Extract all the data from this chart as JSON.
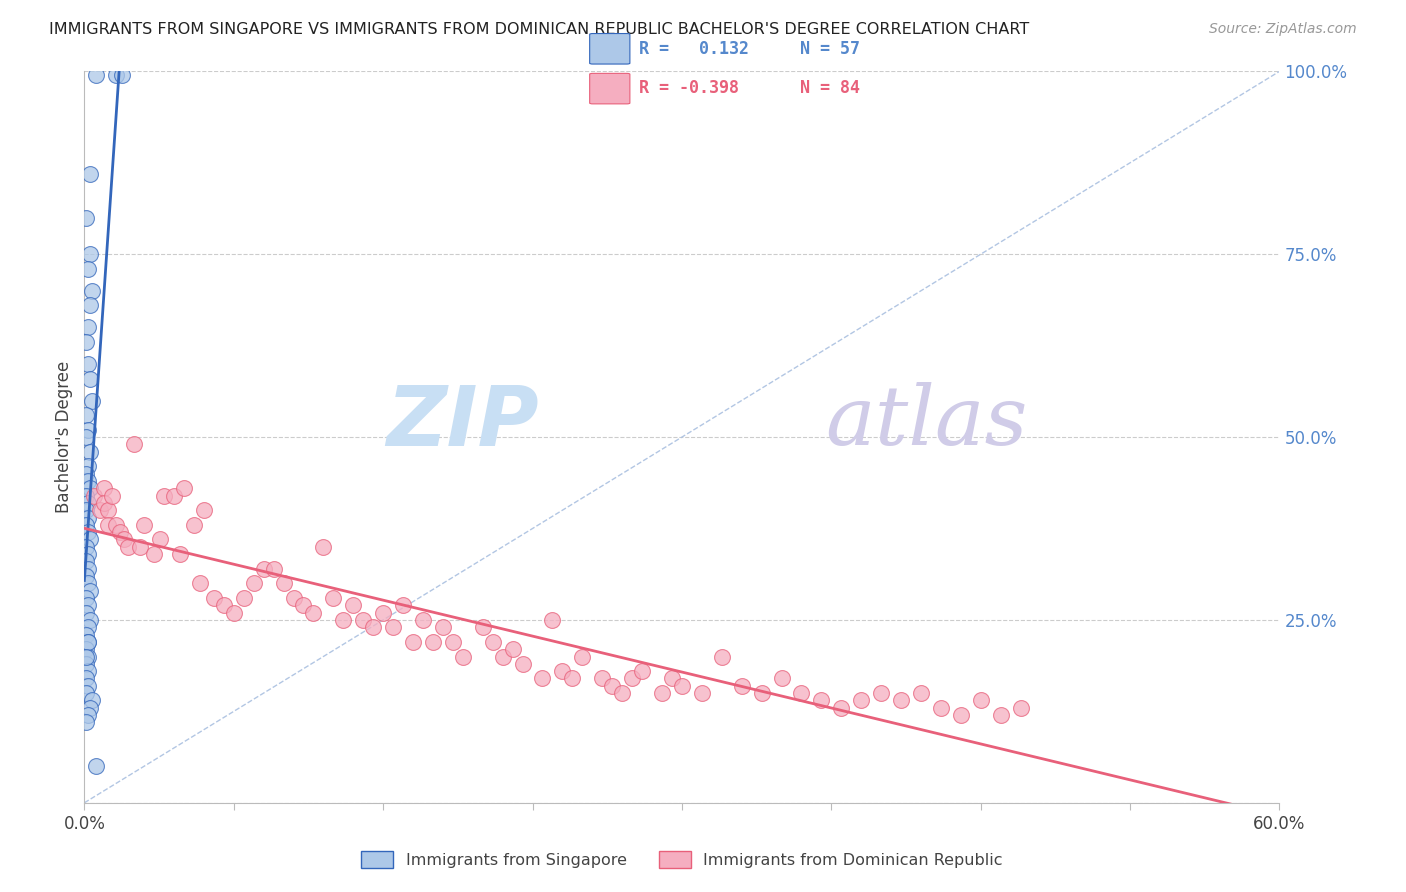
{
  "title": "IMMIGRANTS FROM SINGAPORE VS IMMIGRANTS FROM DOMINICAN REPUBLIC BACHELOR'S DEGREE CORRELATION CHART",
  "source": "Source: ZipAtlas.com",
  "ylabel_left": "Bachelor's Degree",
  "ylabel_right_ticks": [
    0.0,
    0.25,
    0.5,
    0.75,
    1.0
  ],
  "ylabel_right_labels": [
    "",
    "25.0%",
    "50.0%",
    "75.0%",
    "100.0%"
  ],
  "xlim": [
    0.0,
    0.6
  ],
  "ylim": [
    0.0,
    1.0
  ],
  "xticks": [
    0.0,
    0.075,
    0.15,
    0.225,
    0.3,
    0.375,
    0.45,
    0.525,
    0.6
  ],
  "xtick_labels": [
    "0.0%",
    "",
    "",
    "",
    "",
    "",
    "",
    "",
    "60.0%"
  ],
  "legend_r1": "R =   0.132",
  "legend_n1": "N = 57",
  "legend_r2": "R = -0.398",
  "legend_n2": "N = 84",
  "color_singapore": "#adc8e8",
  "color_dominican": "#f5aec0",
  "color_singapore_line": "#3366bb",
  "color_dominican_line": "#e8607a",
  "color_diagonal": "#aac0e0",
  "color_axis_right": "#5588cc",
  "color_grid": "#cccccc",
  "watermark_zip": "ZIP",
  "watermark_atlas": "atlas",
  "watermark_color_zip": "#c8dff4",
  "watermark_color_atlas": "#d0cce8",
  "legend_label_singapore": "Immigrants from Singapore",
  "legend_label_dominican": "Immigrants from Dominican Republic",
  "singapore_x": [
    0.006,
    0.016,
    0.019,
    0.003,
    0.001,
    0.003,
    0.002,
    0.004,
    0.003,
    0.002,
    0.001,
    0.002,
    0.003,
    0.004,
    0.001,
    0.002,
    0.001,
    0.003,
    0.002,
    0.001,
    0.002,
    0.003,
    0.001,
    0.002,
    0.001,
    0.002,
    0.001,
    0.002,
    0.003,
    0.001,
    0.002,
    0.001,
    0.002,
    0.001,
    0.002,
    0.003,
    0.001,
    0.002,
    0.001,
    0.003,
    0.002,
    0.001,
    0.002,
    0.001,
    0.002,
    0.001,
    0.002,
    0.001,
    0.002,
    0.001,
    0.004,
    0.003,
    0.002,
    0.001,
    0.002,
    0.001,
    0.006
  ],
  "singapore_y": [
    0.995,
    0.995,
    0.995,
    0.86,
    0.8,
    0.75,
    0.73,
    0.7,
    0.68,
    0.65,
    0.63,
    0.6,
    0.58,
    0.55,
    0.53,
    0.51,
    0.5,
    0.48,
    0.46,
    0.45,
    0.44,
    0.43,
    0.42,
    0.41,
    0.4,
    0.39,
    0.38,
    0.37,
    0.36,
    0.35,
    0.34,
    0.33,
    0.32,
    0.31,
    0.3,
    0.29,
    0.28,
    0.27,
    0.26,
    0.25,
    0.24,
    0.23,
    0.22,
    0.21,
    0.2,
    0.19,
    0.18,
    0.17,
    0.16,
    0.15,
    0.14,
    0.13,
    0.12,
    0.11,
    0.22,
    0.2,
    0.05
  ],
  "dominican_x": [
    0.005,
    0.008,
    0.01,
    0.01,
    0.012,
    0.012,
    0.014,
    0.016,
    0.018,
    0.02,
    0.022,
    0.025,
    0.028,
    0.03,
    0.035,
    0.038,
    0.04,
    0.045,
    0.048,
    0.05,
    0.055,
    0.058,
    0.06,
    0.065,
    0.07,
    0.075,
    0.08,
    0.085,
    0.09,
    0.095,
    0.1,
    0.105,
    0.11,
    0.115,
    0.12,
    0.125,
    0.13,
    0.135,
    0.14,
    0.145,
    0.15,
    0.155,
    0.16,
    0.165,
    0.17,
    0.175,
    0.18,
    0.185,
    0.19,
    0.2,
    0.205,
    0.21,
    0.215,
    0.22,
    0.23,
    0.235,
    0.24,
    0.245,
    0.25,
    0.26,
    0.265,
    0.27,
    0.275,
    0.28,
    0.29,
    0.295,
    0.3,
    0.31,
    0.32,
    0.33,
    0.34,
    0.35,
    0.36,
    0.37,
    0.38,
    0.39,
    0.4,
    0.41,
    0.42,
    0.43,
    0.44,
    0.45,
    0.46,
    0.47
  ],
  "dominican_y": [
    0.42,
    0.4,
    0.43,
    0.41,
    0.4,
    0.38,
    0.42,
    0.38,
    0.37,
    0.36,
    0.35,
    0.49,
    0.35,
    0.38,
    0.34,
    0.36,
    0.42,
    0.42,
    0.34,
    0.43,
    0.38,
    0.3,
    0.4,
    0.28,
    0.27,
    0.26,
    0.28,
    0.3,
    0.32,
    0.32,
    0.3,
    0.28,
    0.27,
    0.26,
    0.35,
    0.28,
    0.25,
    0.27,
    0.25,
    0.24,
    0.26,
    0.24,
    0.27,
    0.22,
    0.25,
    0.22,
    0.24,
    0.22,
    0.2,
    0.24,
    0.22,
    0.2,
    0.21,
    0.19,
    0.17,
    0.25,
    0.18,
    0.17,
    0.2,
    0.17,
    0.16,
    0.15,
    0.17,
    0.18,
    0.15,
    0.17,
    0.16,
    0.15,
    0.2,
    0.16,
    0.15,
    0.17,
    0.15,
    0.14,
    0.13,
    0.14,
    0.15,
    0.14,
    0.15,
    0.13,
    0.12,
    0.14,
    0.12,
    0.13
  ]
}
